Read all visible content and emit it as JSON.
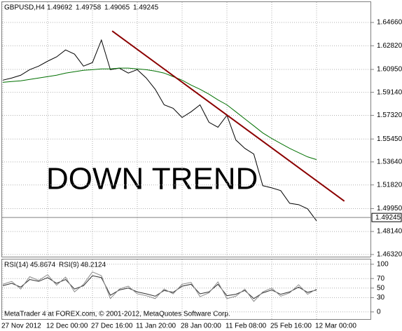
{
  "chart_data": [
    {
      "type": "line",
      "title": "GBPUSD,H4",
      "ohlc": [
        1.49692,
        1.49758,
        1.49065,
        1.49245
      ],
      "categories": [
        "27 Nov 2012",
        null,
        null,
        null,
        null,
        "12 Dec 00:00",
        null,
        null,
        null,
        null,
        "27 Dec 16:00",
        null,
        null,
        null,
        null,
        "11 Jan 20:00",
        null,
        null,
        null,
        null,
        "28 Jan 00:00",
        null,
        null,
        null,
        null,
        "11 Feb 08:00",
        null,
        null,
        null,
        null,
        "25 Feb 16:00",
        null,
        null,
        null,
        null,
        "12 Mar 00:00"
      ],
      "series": [
        {
          "color": "#000000",
          "values": [
            1.601,
            1.6027,
            1.6049,
            1.6093,
            1.6121,
            1.616,
            1.6194,
            1.6249,
            1.6216,
            1.6121,
            1.6149,
            1.6327,
            1.6093,
            1.6105,
            1.6066,
            1.6093,
            1.6027,
            1.5938,
            1.5815,
            1.5788,
            1.5715,
            1.576,
            1.5815,
            1.5677,
            1.5638,
            1.5732,
            1.5537,
            1.5471,
            1.5426,
            1.5176,
            1.5159,
            1.5137,
            1.5037,
            1.5026,
            1.4993,
            1.4898
          ]
        },
        {
          "color": "#007000",
          "values": [
            1.5993,
            1.5999,
            1.6005,
            1.6016,
            1.6027,
            1.6038,
            1.6049,
            1.6066,
            1.6077,
            1.6088,
            1.6093,
            1.6099,
            1.6099,
            1.6105,
            1.6105,
            1.6099,
            1.6093,
            1.6082,
            1.6066,
            1.6038,
            1.601,
            1.5971,
            1.5938,
            1.5899,
            1.5854,
            1.5815,
            1.576,
            1.5704,
            1.5649,
            1.5593,
            1.5549,
            1.551,
            1.5471,
            1.5437,
            1.5404,
            1.5382
          ]
        }
      ],
      "trendline": {
        "x": [
          12.2,
          38.1
        ],
        "values": [
          1.6399,
          1.5054
        ],
        "color": "#8b0000"
      },
      "annotation": {
        "text": "DOWN TREND",
        "color": "#f26a4b"
      },
      "ylim": [
        1.4615,
        1.6627
      ],
      "yticks": [
        {
          "value": 1.6466,
          "label": "1.64660"
        },
        {
          "value": 1.6282,
          "label": "1.62820"
        },
        {
          "value": 1.6095,
          "label": "1.60950"
        },
        {
          "value": 1.5914,
          "label": "1.59140"
        },
        {
          "value": 1.5732,
          "label": "1.57320"
        },
        {
          "value": 1.5545,
          "label": "1.55450"
        },
        {
          "value": 1.5364,
          "label": "1.53640"
        },
        {
          "value": 1.5182,
          "label": "1.51820"
        },
        {
          "value": 1.4995,
          "label": "1.49950"
        },
        {
          "value": 1.4814,
          "label": "1.48140"
        },
        {
          "value": 1.4632,
          "label": "1.46320"
        }
      ],
      "grid": true
    },
    {
      "type": "line",
      "footer": "MetaTrader 4 at FOREX.com, © 2001-2012, MetaQuotes Software Corp.",
      "series": [
        {
          "name": "RSI(14)",
          "last_value": 45.8674,
          "color": "#303030",
          "values": [
            55,
            60,
            52,
            68,
            64,
            72,
            60,
            68,
            48,
            55,
            76,
            72,
            35,
            46,
            50,
            42,
            38,
            33,
            45,
            41,
            54,
            58,
            38,
            42,
            58,
            34,
            37,
            45,
            28,
            40,
            46,
            37,
            42,
            52,
            41,
            46
          ]
        },
        {
          "name": "RSI(9)",
          "last_value": 48.2124,
          "color": "#8a8a8a",
          "values": [
            58,
            64,
            48,
            74,
            66,
            78,
            56,
            73,
            42,
            58,
            84,
            76,
            28,
            48,
            54,
            38,
            34,
            28,
            48,
            38,
            58,
            62,
            32,
            40,
            63,
            28,
            33,
            48,
            22,
            42,
            50,
            33,
            40,
            57,
            37,
            48
          ]
        }
      ],
      "ylim": [
        -15,
        110
      ],
      "yticks": [
        100,
        70,
        50,
        30,
        0
      ],
      "grid": true
    }
  ]
}
